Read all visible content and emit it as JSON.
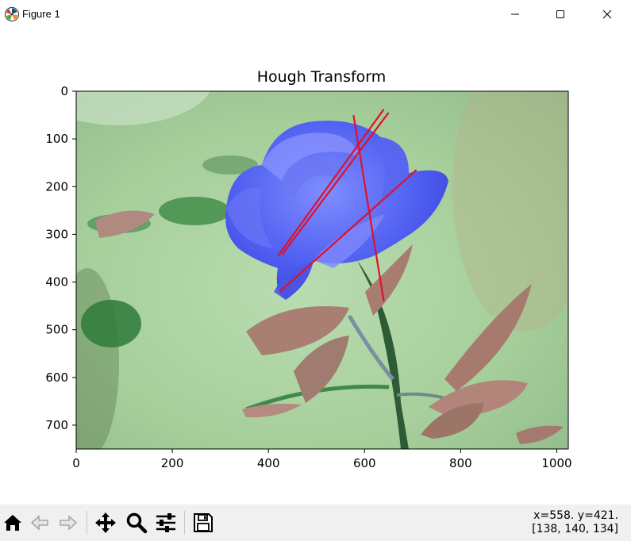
{
  "window": {
    "title": "Figure 1",
    "minimize_icon": "minimize-icon",
    "maximize_icon": "maximize-icon",
    "close_icon": "close-icon"
  },
  "chart_data": {
    "type": "image",
    "title": "Hough Transform",
    "xlabel": "",
    "ylabel": "",
    "xlim": [
      0,
      1024
    ],
    "ylim": [
      750,
      0
    ],
    "xticks": [
      0,
      200,
      400,
      600,
      800,
      1000
    ],
    "yticks": [
      0,
      100,
      200,
      300,
      400,
      500,
      600,
      700
    ],
    "image_description": "photograph of a blue rose on a green blurred background",
    "line_color": "#e0102a",
    "lines": [
      {
        "x1": 420,
        "y1": 345,
        "x2": 640,
        "y2": 38
      },
      {
        "x1": 428,
        "y1": 343,
        "x2": 650,
        "y2": 45
      },
      {
        "x1": 577,
        "y1": 50,
        "x2": 640,
        "y2": 440
      },
      {
        "x1": 424,
        "y1": 420,
        "x2": 708,
        "y2": 165
      }
    ]
  },
  "toolbar": {
    "buttons": [
      {
        "name": "home-button",
        "icon": "home-icon"
      },
      {
        "name": "back-button",
        "icon": "back-arrow-icon"
      },
      {
        "name": "forward-button",
        "icon": "forward-arrow-icon"
      },
      {
        "name": "pan-button",
        "icon": "move-icon"
      },
      {
        "name": "zoom-button",
        "icon": "magnifier-icon"
      },
      {
        "name": "configure-subplots-button",
        "icon": "sliders-icon"
      },
      {
        "name": "save-button",
        "icon": "floppy-disk-icon"
      }
    ],
    "coords_line1": "x=558. y=421.",
    "coords_line2": "[138, 140, 134]"
  }
}
